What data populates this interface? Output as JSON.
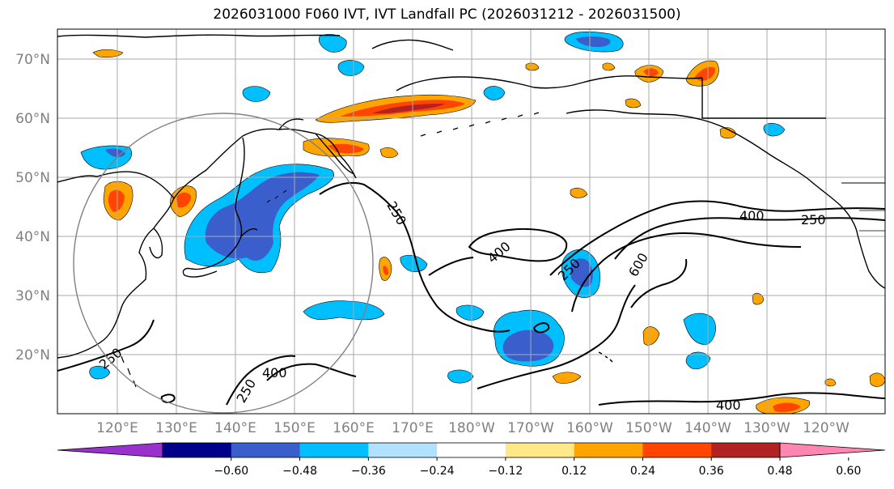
{
  "title": "2026031000 F060 IVT, IVT Landfall PC (2026031212 - 2026031500)",
  "lat_labels": [
    "70°N",
    "60°N",
    "50°N",
    "40°N",
    "30°N",
    "20°N"
  ],
  "lon_labels": [
    "120°E",
    "130°E",
    "140°E",
    "150°E",
    "160°E",
    "170°E",
    "180°W",
    "170°W",
    "160°W",
    "150°W",
    "140°W",
    "130°W",
    "120°W"
  ],
  "contour_labels": [
    "250",
    "400",
    "250",
    "400",
    "250",
    "250",
    "600",
    "400",
    "250",
    "400"
  ],
  "colorbar": {
    "colors": [
      "#9932cc",
      "#00008b",
      "#3a5fcd",
      "#00bfff",
      "#b0e2ff",
      "#ffffff",
      "#ffe888",
      "#ffa500",
      "#ff4500",
      "#b22222",
      "#ff86b0"
    ],
    "ticks": [
      "−0.60",
      "−0.48",
      "−0.36",
      "−0.24",
      "−0.12",
      "0.12",
      "0.24",
      "0.36",
      "0.48",
      "0.60"
    ]
  },
  "colors": {
    "grid": "#aaaaaa",
    "coast": "#000000",
    "contour": "#000000",
    "circle": "#808080"
  }
}
